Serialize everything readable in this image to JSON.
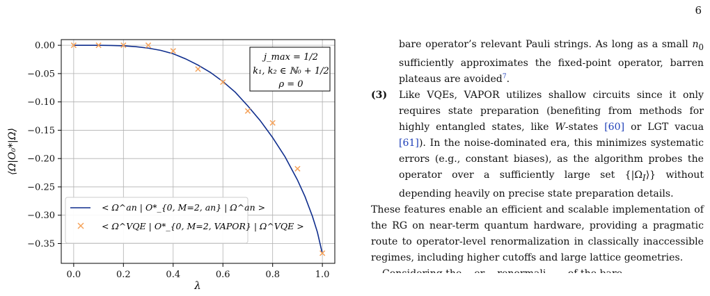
{
  "page_number": "6",
  "figure": {
    "xlabel": "λ",
    "ylabel": "⟨Ω|O₀*|Ω⟩",
    "xticks": [
      "0.0",
      "0.2",
      "0.4",
      "0.6",
      "0.8",
      "1.0"
    ],
    "yticks": [
      "0.00",
      "−0.05",
      "−0.10",
      "−0.15",
      "−0.20",
      "−0.25",
      "−0.30",
      "−0.35"
    ],
    "params": [
      "j_max = 1/2",
      "k₁, k₂ ∈ ℕ₀ + 1/2",
      "ρ = 0"
    ],
    "legend": {
      "analytic": "< Ω^an | O*_{0, M=2, an} | Ω^an >",
      "vqe": "< Ω^VQE | O*_{0, M=2, VAPOR} | Ω^VQE >"
    },
    "colors": {
      "analytic": "#0d2c8c",
      "vqe": "#f5a25a",
      "grid": "#b0b0b0"
    }
  },
  "chart_data": {
    "type": "line",
    "xlabel": "λ",
    "ylabel": "⟨Ω|O₀*|Ω⟩",
    "xlim": [
      -0.05,
      1.05
    ],
    "ylim": [
      -0.385,
      0.01
    ],
    "grid": true,
    "legend_position": "lower-left",
    "series": [
      {
        "name": "< Ω^an | O*_{0, M=2, an} | Ω^an >",
        "type": "line",
        "x": [
          0.0,
          0.05,
          0.1,
          0.15,
          0.2,
          0.25,
          0.3,
          0.35,
          0.4,
          0.45,
          0.5,
          0.55,
          0.6,
          0.65,
          0.7,
          0.75,
          0.8,
          0.85,
          0.9,
          0.93,
          0.96,
          0.98,
          1.0
        ],
        "y": [
          0.0,
          0.0,
          0.0,
          -0.0003,
          -0.001,
          -0.0025,
          -0.005,
          -0.009,
          -0.015,
          -0.024,
          -0.035,
          -0.048,
          -0.064,
          -0.083,
          -0.107,
          -0.133,
          -0.163,
          -0.197,
          -0.238,
          -0.267,
          -0.302,
          -0.33,
          -0.368
        ]
      },
      {
        "name": "< Ω^VQE | O*_{0, M=2, VAPOR} | Ω^VQE >",
        "type": "scatter",
        "x": [
          0.0,
          0.1,
          0.2,
          0.3,
          0.4,
          0.5,
          0.6,
          0.7,
          0.8,
          0.9,
          1.0
        ],
        "y": [
          0.0,
          0.0,
          0.0,
          0.0,
          -0.01,
          -0.042,
          -0.065,
          -0.116,
          -0.137,
          -0.218,
          -0.367
        ]
      }
    ]
  },
  "text": {
    "p_cont_1": "bare operator’s relevant Pauli strings. As long as a small ",
    "n0": "n",
    "n0_sub": "0",
    "p_cont_2": " sufficiently approximates the fixed-point operator, barren plateaus are avoided",
    "fn": "7",
    "p_cont_3": ".",
    "item3_label": "(3)",
    "item3_a": "Like VQEs, VAPOR utilizes shallow circuits since it only requires state preparation (benefiting from methods for highly entangled states, like ",
    "item3_W": "W",
    "item3_b": "-states ",
    "ref60": "[60]",
    "item3_c": " or LGT vacua ",
    "ref61": "[61]",
    "item3_d": "). In the noise-dominated era, this minimizes systematic errors (e.g., constant biases), as the algorithm probes the operator over a sufficiently large set {|Ω",
    "item3_I": "I",
    "item3_e": "⟩} without depending heavily on precise state preparation details.",
    "para2": "These features enable an efficient and scalable implementation of the RG on near-term quantum hardware, providing a pragmatic route to operator-level renormalization in classically inaccessible regimes, including higher cutoffs and large lattice geometries.",
    "para3": "Considering the ...er ...renormali... ...of the bare"
  }
}
